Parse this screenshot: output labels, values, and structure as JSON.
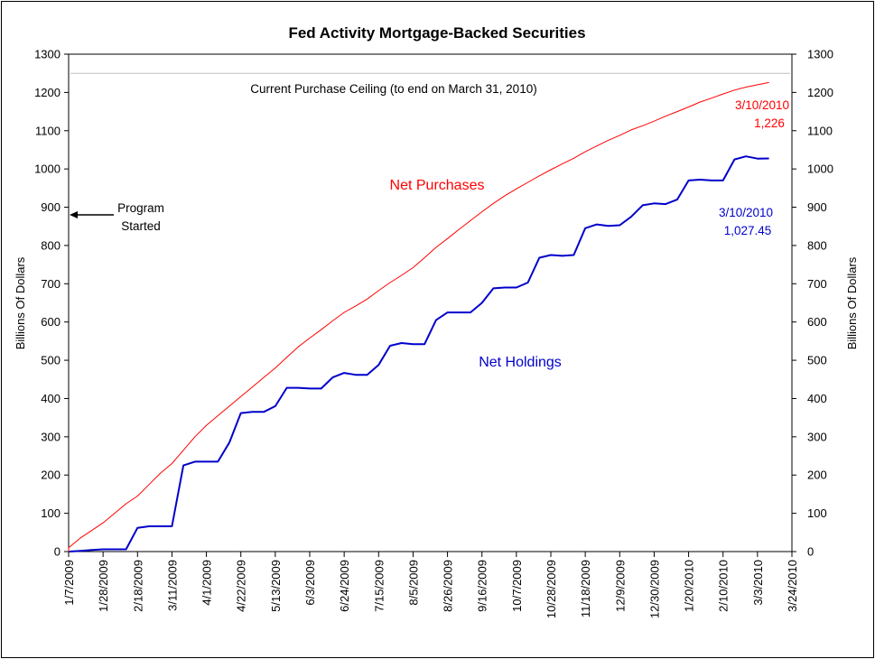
{
  "chart_data": {
    "type": "line",
    "title": "Fed Activity Mortgage-Backed Securities",
    "ylabel_left": "Billions Of Dollars",
    "ylabel_right": "Billions Of Dollars",
    "ylim": [
      0,
      1300
    ],
    "y_ticks": [
      0,
      100,
      200,
      300,
      400,
      500,
      600,
      700,
      800,
      900,
      1000,
      1100,
      1200,
      1300
    ],
    "x_tick_labels": [
      "1/7/2009",
      "1/28/2009",
      "2/18/2009",
      "3/11/2009",
      "4/1/2009",
      "4/22/2009",
      "5/13/2009",
      "6/3/2009",
      "6/24/2009",
      "7/15/2009",
      "8/5/2009",
      "8/26/2009",
      "9/16/2009",
      "10/7/2009",
      "10/28/2009",
      "11/18/2009",
      "12/9/2009",
      "12/30/2009",
      "1/20/2010",
      "2/10/2010",
      "3/3/2010",
      "3/24/2010"
    ],
    "ceiling": {
      "value": 1250,
      "label": "Current Purchase Ceiling (to end on March 31, 2010)",
      "color": "#c0c0c0"
    },
    "series": [
      {
        "name": "Net Purchases",
        "color": "#ff0000",
        "x": [
          "1/7/2009",
          "1/14/2009",
          "1/21/2009",
          "1/28/2009",
          "2/4/2009",
          "2/11/2009",
          "2/18/2009",
          "2/25/2009",
          "3/4/2009",
          "3/11/2009",
          "3/18/2009",
          "3/25/2009",
          "4/1/2009",
          "4/8/2009",
          "4/15/2009",
          "4/22/2009",
          "4/29/2009",
          "5/6/2009",
          "5/13/2009",
          "5/20/2009",
          "5/27/2009",
          "6/3/2009",
          "6/10/2009",
          "6/17/2009",
          "6/24/2009",
          "7/1/2009",
          "7/8/2009",
          "7/15/2009",
          "7/22/2009",
          "7/29/2009",
          "8/5/2009",
          "8/12/2009",
          "8/19/2009",
          "8/26/2009",
          "9/2/2009",
          "9/9/2009",
          "9/16/2009",
          "9/23/2009",
          "9/30/2009",
          "10/7/2009",
          "10/14/2009",
          "10/21/2009",
          "10/28/2009",
          "11/4/2009",
          "11/11/2009",
          "11/18/2009",
          "11/25/2009",
          "12/2/2009",
          "12/9/2009",
          "12/16/2009",
          "12/23/2009",
          "12/30/2009",
          "1/6/2010",
          "1/13/2010",
          "1/20/2010",
          "1/27/2010",
          "2/3/2010",
          "2/10/2010",
          "2/17/2010",
          "2/24/2010",
          "3/3/2010",
          "3/10/2010"
        ],
        "values": [
          10,
          35,
          55,
          75,
          100,
          125,
          145,
          175,
          205,
          230,
          265,
          300,
          330,
          355,
          380,
          405,
          430,
          455,
          480,
          508,
          535,
          558,
          580,
          603,
          625,
          642,
          660,
          682,
          703,
          722,
          742,
          768,
          795,
          818,
          842,
          865,
          888,
          910,
          930,
          948,
          965,
          982,
          998,
          1013,
          1028,
          1045,
          1060,
          1075,
          1088,
          1102,
          1113,
          1125,
          1138,
          1150,
          1162,
          1175,
          1185,
          1196,
          1206,
          1214,
          1220,
          1226
        ]
      },
      {
        "name": "Net Holdings",
        "color": "#0000cc",
        "x": [
          "1/14/2009",
          "1/21/2009",
          "1/28/2009",
          "2/4/2009",
          "2/11/2009",
          "2/18/2009",
          "2/25/2009",
          "3/4/2009",
          "3/11/2009",
          "3/18/2009",
          "3/25/2009",
          "4/1/2009",
          "4/8/2009",
          "4/15/2009",
          "4/22/2009",
          "4/29/2009",
          "5/6/2009",
          "5/13/2009",
          "5/20/2009",
          "5/27/2009",
          "6/3/2009",
          "6/10/2009",
          "6/17/2009",
          "6/24/2009",
          "7/1/2009",
          "7/8/2009",
          "7/15/2009",
          "7/22/2009",
          "7/29/2009",
          "8/5/2009",
          "8/12/2009",
          "8/19/2009",
          "8/26/2009",
          "9/2/2009",
          "9/9/2009",
          "9/16/2009",
          "9/23/2009",
          "9/30/2009",
          "10/7/2009",
          "10/14/2009",
          "10/21/2009",
          "10/28/2009",
          "11/4/2009",
          "11/11/2009",
          "11/18/2009",
          "11/25/2009",
          "12/2/2009",
          "12/9/2009",
          "12/16/2009",
          "12/23/2009",
          "12/30/2009",
          "1/6/2010",
          "1/13/2010",
          "1/20/2010",
          "1/27/2010",
          "2/3/2010",
          "2/10/2010",
          "2/17/2010",
          "2/24/2010",
          "3/3/2010",
          "3/10/2010"
        ],
        "values": [
          2,
          4,
          6,
          6,
          6,
          62,
          66,
          66,
          66,
          225,
          235,
          235,
          235,
          285,
          362,
          365,
          365,
          380,
          428,
          428,
          426,
          426,
          455,
          467,
          462,
          462,
          488,
          538,
          545,
          542,
          542,
          605,
          625,
          625,
          625,
          650,
          688,
          690,
          690,
          703,
          768,
          775,
          773,
          775,
          845,
          855,
          851,
          853,
          875,
          905,
          910,
          908,
          920,
          970,
          972,
          970,
          970,
          1025,
          1033,
          1027,
          1027.45
        ]
      }
    ],
    "annotations": {
      "program_started": [
        "Program",
        "Started"
      ],
      "purchases_end_date": "3/10/2010",
      "purchases_end_value": "1,226",
      "holdings_end_date": "3/10/2010",
      "holdings_end_value": "1,027.45"
    }
  }
}
